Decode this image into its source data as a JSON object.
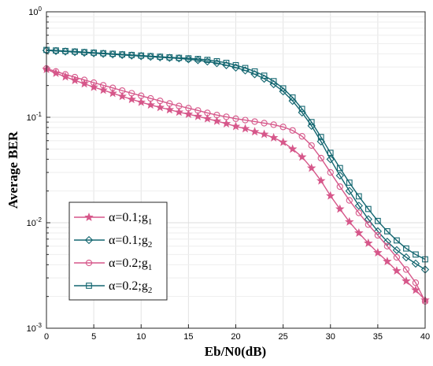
{
  "chart_data": {
    "type": "line",
    "xlabel": "Eb/N0(dB)",
    "ylabel": "Average BER",
    "xlim": [
      0,
      40
    ],
    "ylim": [
      0.001,
      1
    ],
    "yscale": "log",
    "grid": true,
    "legend_position": "bottom-left",
    "x_ticks": [
      "0",
      "5",
      "10",
      "15",
      "20",
      "25",
      "30",
      "35",
      "40"
    ],
    "y_ticks": [
      {
        "base": "10",
        "exp": "-3"
      },
      {
        "base": "10",
        "exp": "-2"
      },
      {
        "base": "10",
        "exp": "-1"
      },
      {
        "base": "10",
        "exp": "0"
      }
    ],
    "x": [
      0,
      1,
      2,
      3,
      4,
      5,
      6,
      7,
      8,
      9,
      10,
      11,
      12,
      13,
      14,
      15,
      16,
      17,
      18,
      19,
      20,
      21,
      22,
      23,
      24,
      25,
      26,
      27,
      28,
      29,
      30,
      31,
      32,
      33,
      34,
      35,
      36,
      37,
      38,
      39,
      40
    ],
    "series": [
      {
        "legend_alpha": "α=0.1;g",
        "legend_sub": "1",
        "color": "#d6578a",
        "marker": "star",
        "values": [
          0.285,
          0.262,
          0.242,
          0.224,
          0.208,
          0.193,
          0.181,
          0.169,
          0.158,
          0.148,
          0.139,
          0.131,
          0.124,
          0.118,
          0.112,
          0.107,
          0.102,
          0.097,
          0.092,
          0.087,
          0.082,
          0.078,
          0.073,
          0.069,
          0.064,
          0.058,
          0.05,
          0.042,
          0.033,
          0.025,
          0.018,
          0.0135,
          0.0102,
          0.008,
          0.0064,
          0.0052,
          0.0043,
          0.0035,
          0.0028,
          0.0023,
          0.00185
        ]
      },
      {
        "legend_alpha": "α=0.1;g",
        "legend_sub": "2",
        "color": "#136670",
        "marker": "diamond",
        "values": [
          0.43,
          0.425,
          0.42,
          0.415,
          0.41,
          0.405,
          0.4,
          0.395,
          0.39,
          0.385,
          0.38,
          0.375,
          0.37,
          0.366,
          0.362,
          0.355,
          0.348,
          0.338,
          0.326,
          0.312,
          0.296,
          0.278,
          0.256,
          0.232,
          0.206,
          0.176,
          0.143,
          0.111,
          0.083,
          0.059,
          0.04,
          0.028,
          0.02,
          0.0145,
          0.0108,
          0.0083,
          0.0066,
          0.0055,
          0.0047,
          0.0041,
          0.0036
        ]
      },
      {
        "legend_alpha": "α=0.2;g",
        "legend_sub": "1",
        "color": "#d6578a",
        "marker": "circle",
        "values": [
          0.29,
          0.272,
          0.255,
          0.24,
          0.226,
          0.213,
          0.201,
          0.19,
          0.179,
          0.169,
          0.16,
          0.151,
          0.143,
          0.135,
          0.128,
          0.122,
          0.116,
          0.11,
          0.105,
          0.101,
          0.097,
          0.094,
          0.091,
          0.088,
          0.085,
          0.081,
          0.075,
          0.066,
          0.054,
          0.041,
          0.03,
          0.022,
          0.0163,
          0.0124,
          0.0096,
          0.0076,
          0.006,
          0.0047,
          0.0036,
          0.0027,
          0.0018
        ]
      },
      {
        "legend_alpha": "α=0.2;g",
        "legend_sub": "2",
        "color": "#136670",
        "marker": "square",
        "values": [
          0.435,
          0.43,
          0.425,
          0.42,
          0.415,
          0.41,
          0.405,
          0.4,
          0.395,
          0.39,
          0.385,
          0.38,
          0.375,
          0.37,
          0.366,
          0.362,
          0.357,
          0.35,
          0.34,
          0.328,
          0.312,
          0.293,
          0.272,
          0.248,
          0.22,
          0.188,
          0.154,
          0.12,
          0.09,
          0.065,
          0.046,
          0.033,
          0.024,
          0.0178,
          0.0135,
          0.0104,
          0.0083,
          0.0068,
          0.0057,
          0.005,
          0.0045
        ]
      }
    ]
  }
}
